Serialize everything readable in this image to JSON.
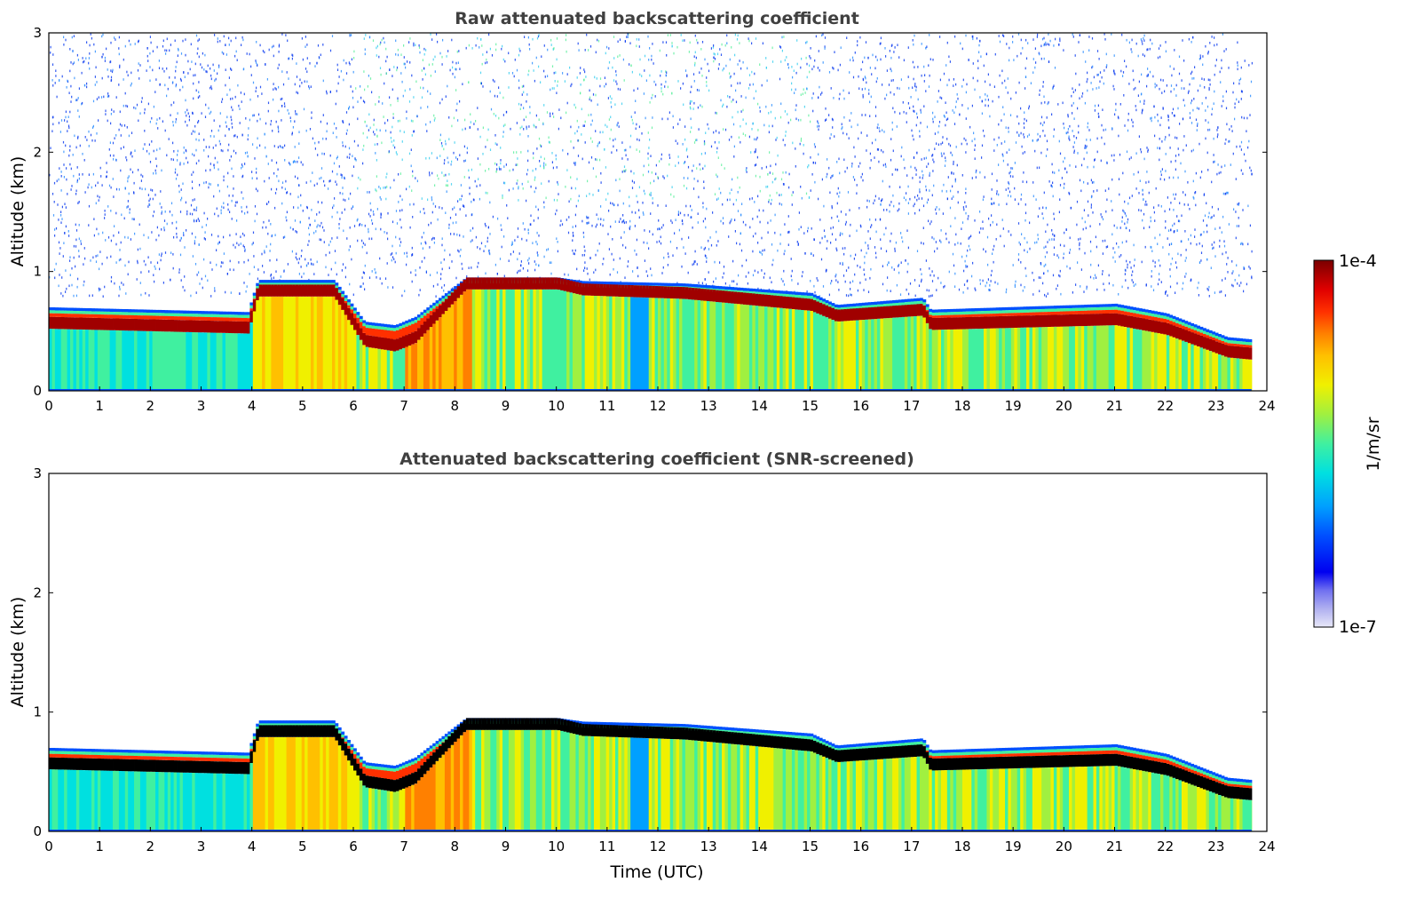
{
  "chart_data": [
    {
      "type": "heatmap",
      "title": "Raw attenuated backscattering coefficient",
      "xlabel": "",
      "ylabel": "Altitude (km)",
      "xlim": [
        0,
        24
      ],
      "ylim": [
        0,
        3
      ],
      "x_ticks": [
        "0",
        "1",
        "2",
        "3",
        "4",
        "5",
        "6",
        "7",
        "8",
        "9",
        "10",
        "11",
        "12",
        "13",
        "14",
        "15",
        "16",
        "17",
        "18",
        "19",
        "20",
        "21",
        "22",
        "23",
        "24"
      ],
      "y_ticks": [
        "0",
        "1",
        "2",
        "3"
      ],
      "data_end_time": 23.7,
      "noise_above_layer": true,
      "layer_top_km": {
        "time": [
          0,
          3.9,
          4.1,
          5.6,
          6.2,
          6.8,
          7.2,
          8.2,
          10.0,
          10.5,
          12.5,
          15.0,
          15.5,
          17.2,
          17.35,
          21.0,
          22.0,
          23.2,
          23.7
        ],
        "value": [
          0.7,
          0.66,
          0.93,
          0.93,
          0.58,
          0.55,
          0.62,
          0.95,
          0.95,
          0.92,
          0.9,
          0.82,
          0.72,
          0.78,
          0.68,
          0.73,
          0.65,
          0.45,
          0.43
        ]
      },
      "peak_layer_km": {
        "time": [
          0,
          3.9,
          4.1,
          5.6,
          6.2,
          6.8,
          7.2,
          8.2,
          10.0,
          10.5,
          12.5,
          15.0,
          15.5,
          17.2,
          17.35,
          21.0,
          22.0,
          23.2,
          23.7
        ],
        "value": [
          0.57,
          0.53,
          0.84,
          0.84,
          0.42,
          0.38,
          0.45,
          0.9,
          0.9,
          0.85,
          0.82,
          0.72,
          0.63,
          0.68,
          0.56,
          0.6,
          0.52,
          0.33,
          0.31
        ]
      }
    },
    {
      "type": "heatmap",
      "title": "Attenuated backscattering coefficient (SNR-screened)",
      "xlabel": "Time (UTC)",
      "ylabel": "Altitude (km)",
      "xlim": [
        0,
        24
      ],
      "ylim": [
        0,
        3
      ],
      "x_ticks": [
        "0",
        "1",
        "2",
        "3",
        "4",
        "5",
        "6",
        "7",
        "8",
        "9",
        "10",
        "11",
        "12",
        "13",
        "14",
        "15",
        "16",
        "17",
        "18",
        "19",
        "20",
        "21",
        "22",
        "23",
        "24"
      ],
      "y_ticks": [
        "0",
        "1",
        "2",
        "3"
      ],
      "data_end_time": 23.7,
      "noise_above_layer": false,
      "saturated_color": "#000000",
      "layer_top_km": {
        "time": [
          0,
          3.9,
          4.1,
          5.6,
          6.2,
          6.8,
          7.2,
          8.2,
          10.0,
          10.5,
          12.5,
          15.0,
          15.5,
          17.2,
          17.35,
          21.0,
          22.0,
          23.2,
          23.7
        ],
        "value": [
          0.7,
          0.66,
          0.93,
          0.93,
          0.58,
          0.55,
          0.62,
          0.95,
          0.95,
          0.92,
          0.9,
          0.82,
          0.72,
          0.78,
          0.68,
          0.73,
          0.65,
          0.45,
          0.43
        ]
      },
      "peak_layer_km": {
        "time": [
          0,
          3.9,
          4.1,
          5.6,
          6.2,
          6.8,
          7.2,
          8.2,
          10.0,
          10.5,
          12.5,
          15.0,
          15.5,
          17.2,
          17.35,
          21.0,
          22.0,
          23.2,
          23.7
        ],
        "value": [
          0.57,
          0.53,
          0.84,
          0.84,
          0.42,
          0.38,
          0.45,
          0.9,
          0.9,
          0.85,
          0.82,
          0.72,
          0.63,
          0.68,
          0.56,
          0.6,
          0.52,
          0.33,
          0.31
        ]
      }
    }
  ],
  "colorbar": {
    "label": "1/m/sr",
    "max_label": "1e-4",
    "min_label": "1e-7",
    "colors": [
      "#e8e8f8",
      "#b0b0f0",
      "#7070f0",
      "#0000f0",
      "#0050ff",
      "#00a0ff",
      "#00e0e0",
      "#40f0a0",
      "#a0f040",
      "#f0f000",
      "#ffc000",
      "#ff8000",
      "#ff3000",
      "#e00000",
      "#a00000",
      "#7a0000"
    ]
  }
}
